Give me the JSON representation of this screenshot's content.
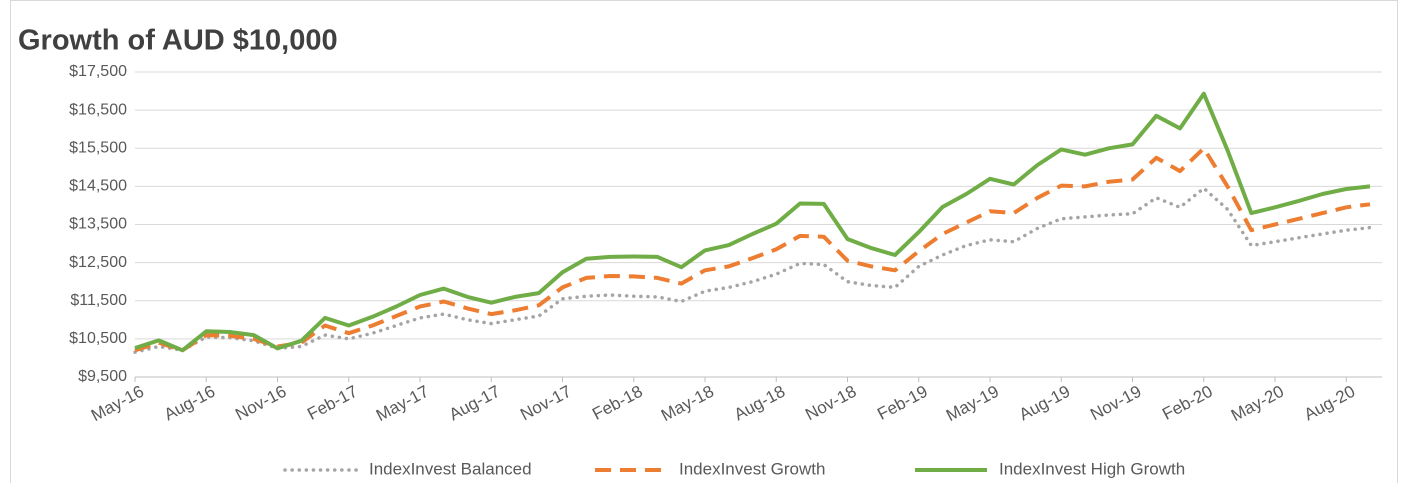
{
  "chart_data": {
    "type": "line",
    "title": "Growth of AUD $10,000",
    "categories": [
      "May-16",
      null,
      null,
      "Aug-16",
      null,
      null,
      "Nov-16",
      null,
      null,
      "Feb-17",
      null,
      null,
      "May-17",
      null,
      null,
      "Aug-17",
      null,
      null,
      "Nov-17",
      null,
      null,
      "Feb-18",
      null,
      null,
      "May-18",
      null,
      null,
      "Aug-18",
      null,
      null,
      "Nov-18",
      null,
      null,
      "Feb-19",
      null,
      null,
      "May-19",
      null,
      null,
      "Aug-19",
      null,
      null,
      "Nov-19",
      null,
      null,
      "Feb-20",
      null,
      null,
      "May-20",
      null,
      null,
      "Aug-20",
      null
    ],
    "series": [
      {
        "name": "IndexInvest Balanced",
        "color": "#a5a5a5",
        "style": "dotted",
        "values": [
          10150,
          10300,
          10200,
          10550,
          10530,
          10450,
          10250,
          10300,
          10600,
          10500,
          10650,
          10850,
          11050,
          11150,
          11000,
          10900,
          11000,
          11100,
          11550,
          11620,
          11650,
          11620,
          11600,
          11480,
          11750,
          11850,
          12000,
          12200,
          12480,
          12450,
          12000,
          11900,
          11850,
          12400,
          12700,
          12950,
          13100,
          13050,
          13400,
          13650,
          13700,
          13750,
          13780,
          14200,
          13950,
          14450,
          13900,
          12950,
          13050,
          13150,
          13250,
          13350,
          13420
        ]
      },
      {
        "name": "IndexInvest Growth",
        "color": "#ed7d31",
        "style": "dashed",
        "values": [
          10200,
          10400,
          10200,
          10600,
          10580,
          10500,
          10300,
          10400,
          10850,
          10650,
          10850,
          11100,
          11350,
          11480,
          11300,
          11150,
          11250,
          11380,
          11850,
          12100,
          12150,
          12140,
          12100,
          11950,
          12300,
          12400,
          12620,
          12850,
          13200,
          13180,
          12550,
          12400,
          12300,
          12800,
          13250,
          13550,
          13850,
          13800,
          14200,
          14520,
          14500,
          14620,
          14680,
          15250,
          14900,
          15500,
          14500,
          13350,
          13500,
          13650,
          13800,
          13950,
          14030
        ]
      },
      {
        "name": "IndexInvest High Growth",
        "color": "#70ad47",
        "style": "solid",
        "values": [
          10260,
          10460,
          10200,
          10700,
          10680,
          10600,
          10250,
          10450,
          11050,
          10850,
          11080,
          11350,
          11650,
          11820,
          11600,
          11450,
          11600,
          11700,
          12250,
          12600,
          12650,
          12660,
          12650,
          12380,
          12820,
          12960,
          13250,
          13520,
          14050,
          14040,
          13120,
          12880,
          12700,
          13300,
          13960,
          14300,
          14700,
          14550,
          15060,
          15470,
          15330,
          15500,
          15600,
          16350,
          16020,
          16930,
          15450,
          13800,
          13950,
          14120,
          14300,
          14430,
          14500
        ]
      }
    ],
    "ylim": [
      9500,
      17500
    ],
    "yticks": [
      {
        "value": 9500,
        "label": "$9,500"
      },
      {
        "value": 10500,
        "label": "$10,500"
      },
      {
        "value": 11500,
        "label": "$11,500"
      },
      {
        "value": 12500,
        "label": "$12,500"
      },
      {
        "value": 13500,
        "label": "$13,500"
      },
      {
        "value": 14500,
        "label": "$14,500"
      },
      {
        "value": 15500,
        "label": "$15,500"
      },
      {
        "value": 16500,
        "label": "$16,500"
      },
      {
        "value": 17500,
        "label": "$17,500"
      }
    ],
    "grid": true,
    "legend": "bottom"
  }
}
